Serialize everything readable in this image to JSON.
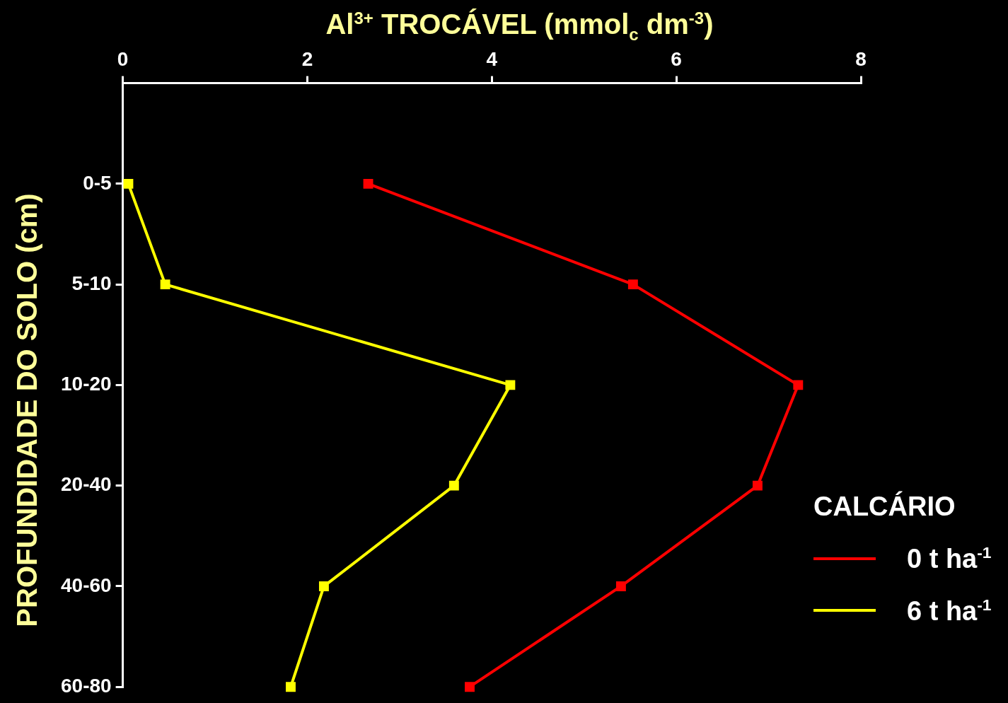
{
  "chart_data": {
    "type": "line",
    "xlabel": "Al$^{3+}$ TROCÁVEL (mmol$_{c}$ dm$^{-3}$)",
    "ylabel": "PROFUNDIDADE DO SOLO (cm)",
    "legend_title": "CALCÁRIO",
    "legend": "right",
    "marker": "square",
    "line_style": "solid",
    "orientation": "horizontal",
    "categories": [
      "0-5",
      "5-10",
      "10-20",
      "20-40",
      "40-60",
      "60-80"
    ],
    "xlim": [
      0,
      8
    ],
    "xticks": [
      0,
      2,
      4,
      6,
      8
    ],
    "series": [
      {
        "name": "0 t ha$^{-1}$",
        "color": "#ff0000",
        "values": [
          2.66,
          5.53,
          7.32,
          6.88,
          5.4,
          3.76
        ]
      },
      {
        "name": "6 t ha$^{-1}$",
        "color": "#ffff00",
        "values": [
          0.06,
          0.46,
          4.2,
          3.59,
          2.18,
          1.82
        ]
      }
    ]
  }
}
